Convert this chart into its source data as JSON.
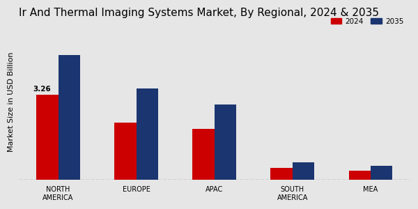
{
  "title": "Ir And Thermal Imaging Systems Market, By Regional, 2024 & 2035",
  "ylabel": "Market Size in USD Billion",
  "categories": [
    "NORTH\nAMERICA",
    "EUROPE",
    "APAC",
    "SOUTH\nAMERICA",
    "MEA"
  ],
  "values_2024": [
    3.26,
    2.2,
    1.95,
    0.45,
    0.35
  ],
  "values_2035": [
    4.8,
    3.5,
    2.9,
    0.65,
    0.52
  ],
  "color_2024": "#cc0000",
  "color_2035": "#1a3570",
  "annotation_2024": "3.26",
  "background_color": "#e6e6e6",
  "legend_labels": [
    "2024",
    "2035"
  ],
  "bar_width": 0.28,
  "ylim": [
    0,
    6.0
  ],
  "title_fontsize": 11,
  "axis_label_fontsize": 8,
  "tick_fontsize": 7
}
